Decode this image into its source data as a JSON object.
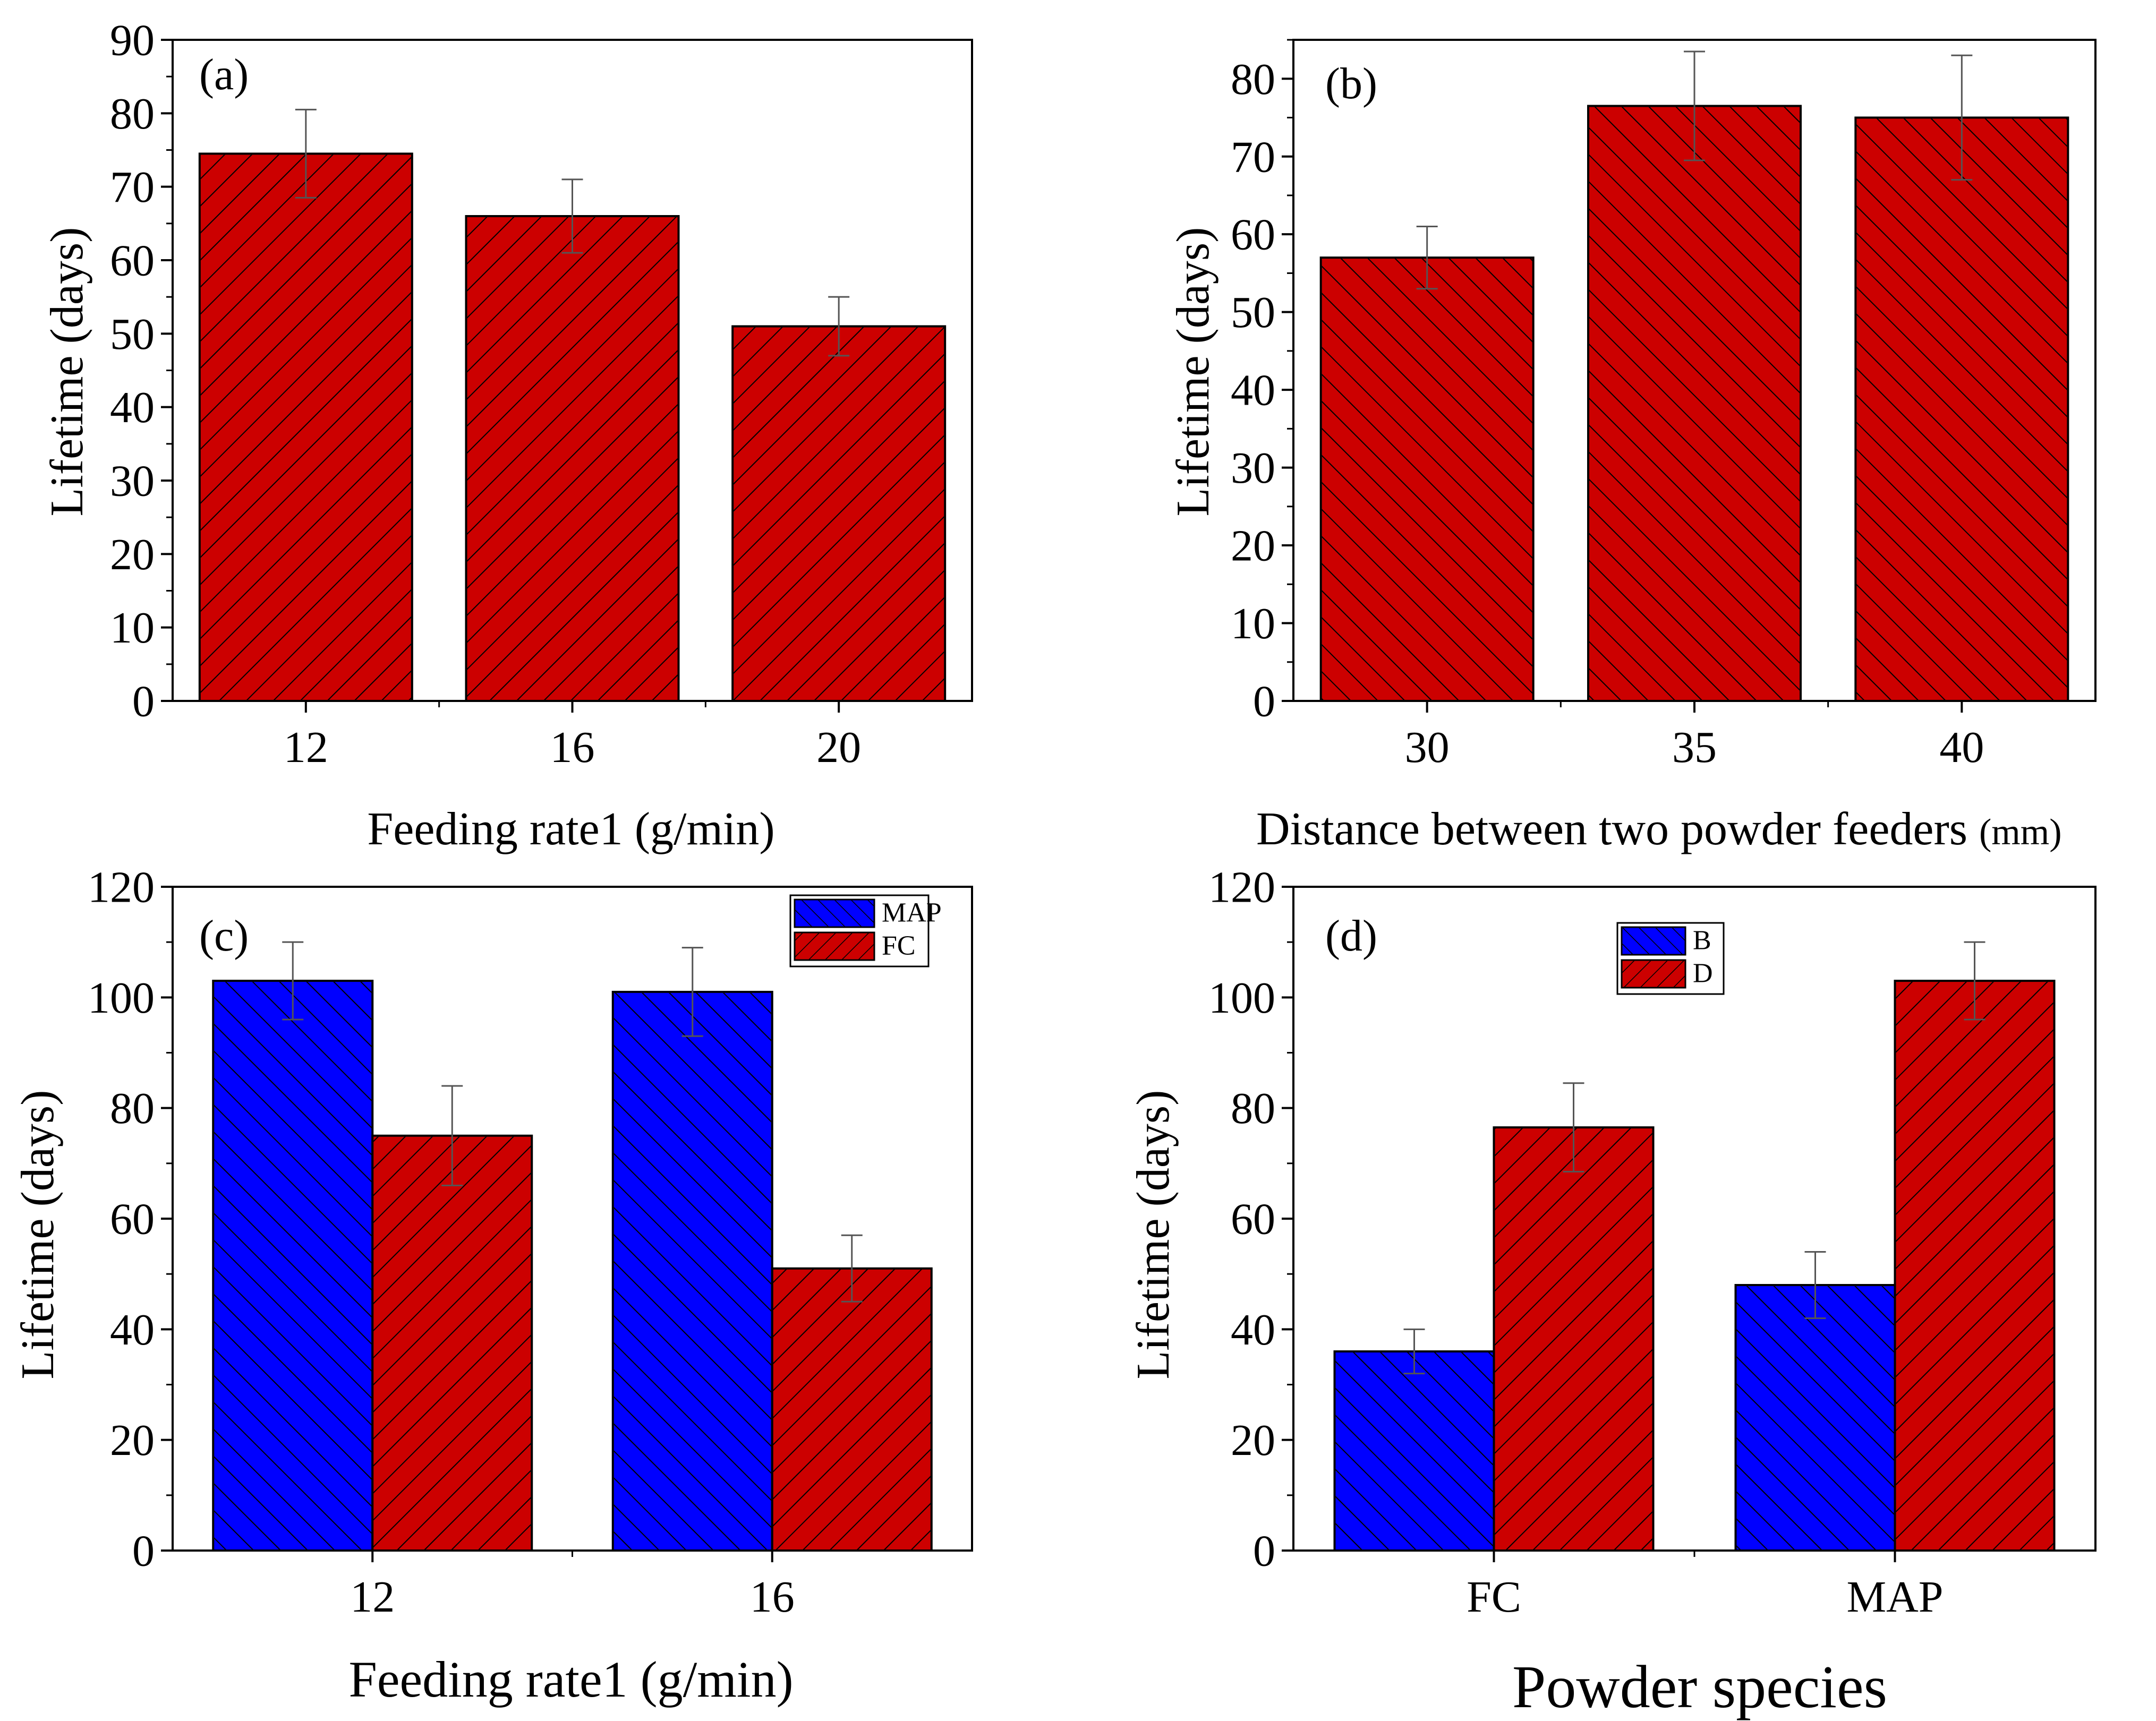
{
  "colors": {
    "red": "#cc0000",
    "blue": "#0000ff",
    "stroke": "#000000"
  },
  "chart_data": [
    {
      "panel": "(a)",
      "type": "bar",
      "categories": [
        "12",
        "16",
        "20"
      ],
      "series": [
        {
          "name": "",
          "color": "#cc0000",
          "hatch": "back",
          "values": [
            74.5,
            66,
            51
          ],
          "errors": [
            6,
            5,
            4
          ]
        }
      ],
      "xlabel": "Feeding rate1 (g/min)",
      "ylabel": "Lifetime (days)",
      "ylim": [
        0,
        90
      ],
      "yticks": [
        0,
        10,
        20,
        30,
        40,
        50,
        60,
        70,
        80,
        90
      ],
      "legend": null
    },
    {
      "panel": "(b)",
      "type": "bar",
      "categories": [
        "30",
        "35",
        "40"
      ],
      "series": [
        {
          "name": "",
          "color": "#cc0000",
          "hatch": "forward",
          "values": [
            57,
            76.5,
            75
          ],
          "errors": [
            4,
            7,
            8
          ]
        }
      ],
      "xlabel": "Distance between two powder feeders",
      "xlabel_unit": "(mm)",
      "ylabel": "Lifetime (days)",
      "ylim": [
        0,
        85
      ],
      "yticks": [
        0,
        10,
        20,
        30,
        40,
        50,
        60,
        70,
        80
      ],
      "legend": null
    },
    {
      "panel": "(c)",
      "type": "bar",
      "categories": [
        "12",
        "16"
      ],
      "series": [
        {
          "name": "MAP",
          "color": "#0000ff",
          "hatch": "forward",
          "values": [
            103,
            101
          ],
          "errors": [
            7,
            8
          ]
        },
        {
          "name": "FC",
          "color": "#cc0000",
          "hatch": "back",
          "values": [
            75,
            51
          ],
          "errors": [
            9,
            6
          ]
        }
      ],
      "xlabel": "Feeding rate1 (g/min)",
      "ylabel": "Lifetime (days)",
      "ylim": [
        0,
        120
      ],
      "yticks": [
        0,
        20,
        40,
        60,
        80,
        100,
        120
      ],
      "legend": "top-right"
    },
    {
      "panel": "(d)",
      "type": "bar",
      "categories": [
        "FC",
        "MAP"
      ],
      "series": [
        {
          "name": "B",
          "color": "#0000ff",
          "hatch": "forward",
          "values": [
            36,
            48
          ],
          "errors": [
            4,
            6
          ]
        },
        {
          "name": "D",
          "color": "#cc0000",
          "hatch": "back",
          "values": [
            76.5,
            103
          ],
          "errors": [
            8,
            7
          ]
        }
      ],
      "xlabel": "Powder species",
      "ylabel": "Lifetime (days)",
      "ylim": [
        0,
        120
      ],
      "yticks": [
        0,
        20,
        40,
        60,
        80,
        100,
        120
      ],
      "legend": "top-center"
    }
  ]
}
